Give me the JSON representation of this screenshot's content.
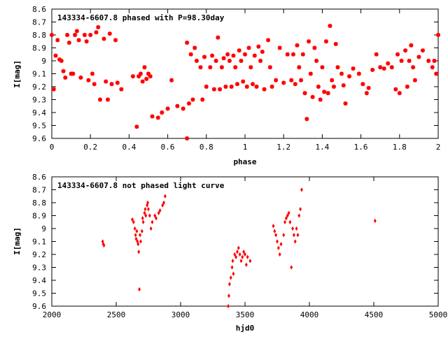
{
  "chart_data": [
    {
      "type": "scatter",
      "title": "143334-6607.8 phased with P=98.30day",
      "xlabel": "phase",
      "ylabel": "I[mag]",
      "xlim": [
        0,
        2
      ],
      "ylim": [
        9.6,
        8.6
      ],
      "y_reversed": true,
      "grid": false,
      "marker_color": "#ff0000",
      "marker": "asterisk",
      "xticks": [
        0,
        0.2,
        0.4,
        0.6,
        0.8,
        1,
        1.2,
        1.4,
        1.6,
        1.8,
        2
      ],
      "xtick_labels": [
        "0",
        "0.2",
        "0.4",
        "0.6",
        "0.8",
        "1",
        "1.2",
        "1.4",
        "1.6",
        "1.8",
        "2"
      ],
      "yticks": [
        8.6,
        8.7,
        8.8,
        8.9,
        9,
        9.1,
        9.2,
        9.3,
        9.4,
        9.5,
        9.6
      ],
      "ytick_labels": [
        "8.6",
        "8.7",
        "8.8",
        "8.9",
        "9",
        "9.1",
        "9.2",
        "9.3",
        "9.4",
        "9.5",
        "9.6"
      ],
      "series": [
        {
          "points": [
            [
              0.0,
              8.8
            ],
            [
              0.01,
              9.22
            ],
            [
              0.02,
              8.96
            ],
            [
              0.03,
              8.84
            ],
            [
              0.04,
              8.99
            ],
            [
              0.05,
              9.0
            ],
            [
              0.06,
              9.08
            ],
            [
              0.07,
              9.13
            ],
            [
              0.08,
              8.8
            ],
            [
              0.09,
              8.86
            ],
            [
              0.1,
              9.1
            ],
            [
              0.11,
              9.1
            ],
            [
              0.12,
              8.8
            ],
            [
              0.13,
              8.77
            ],
            [
              0.14,
              8.84
            ],
            [
              0.15,
              9.13
            ],
            [
              0.17,
              8.8
            ],
            [
              0.18,
              8.85
            ],
            [
              0.19,
              9.15
            ],
            [
              0.2,
              8.8
            ],
            [
              0.21,
              9.1
            ],
            [
              0.22,
              9.18
            ],
            [
              0.23,
              8.78
            ],
            [
              0.24,
              8.74
            ],
            [
              0.25,
              9.3
            ],
            [
              0.27,
              8.83
            ],
            [
              0.28,
              9.16
            ],
            [
              0.29,
              9.3
            ],
            [
              0.3,
              8.79
            ],
            [
              0.31,
              9.18
            ],
            [
              0.33,
              8.84
            ],
            [
              0.34,
              9.17
            ],
            [
              0.36,
              9.22
            ],
            [
              0.42,
              9.12
            ],
            [
              0.44,
              9.51
            ],
            [
              0.45,
              9.12
            ],
            [
              0.46,
              9.1
            ],
            [
              0.47,
              9.16
            ],
            [
              0.48,
              9.05
            ],
            [
              0.49,
              9.14
            ],
            [
              0.5,
              9.1
            ],
            [
              0.51,
              9.12
            ],
            [
              0.52,
              9.43
            ],
            [
              0.55,
              9.44
            ],
            [
              0.57,
              9.4
            ],
            [
              0.6,
              9.37
            ],
            [
              0.62,
              9.15
            ],
            [
              0.65,
              9.35
            ],
            [
              0.68,
              9.37
            ],
            [
              0.7,
              9.6
            ],
            [
              0.7,
              8.86
            ],
            [
              0.71,
              9.33
            ],
            [
              0.72,
              8.95
            ],
            [
              0.73,
              9.3
            ],
            [
              0.74,
              8.9
            ],
            [
              0.75,
              9.0
            ],
            [
              0.77,
              9.05
            ],
            [
              0.78,
              9.3
            ],
            [
              0.79,
              8.97
            ],
            [
              0.8,
              9.2
            ],
            [
              0.82,
              9.05
            ],
            [
              0.83,
              8.96
            ],
            [
              0.84,
              9.22
            ],
            [
              0.85,
              9.0
            ],
            [
              0.86,
              8.82
            ],
            [
              0.87,
              9.22
            ],
            [
              0.88,
              9.05
            ],
            [
              0.89,
              8.98
            ],
            [
              0.9,
              9.2
            ],
            [
              0.91,
              8.95
            ],
            [
              0.92,
              9.0
            ],
            [
              0.93,
              9.2
            ],
            [
              0.94,
              8.96
            ],
            [
              0.95,
              9.05
            ],
            [
              0.96,
              9.18
            ],
            [
              0.97,
              8.92
            ],
            [
              0.98,
              9.0
            ],
            [
              0.99,
              9.16
            ],
            [
              1.0,
              8.95
            ],
            [
              1.01,
              9.2
            ],
            [
              1.02,
              8.9
            ],
            [
              1.03,
              9.05
            ],
            [
              1.04,
              9.18
            ],
            [
              1.05,
              8.96
            ],
            [
              1.06,
              9.2
            ],
            [
              1.07,
              8.89
            ],
            [
              1.08,
              9.0
            ],
            [
              1.09,
              8.93
            ],
            [
              1.1,
              9.22
            ],
            [
              1.12,
              8.84
            ],
            [
              1.13,
              9.05
            ],
            [
              1.14,
              9.2
            ],
            [
              1.16,
              9.15
            ],
            [
              1.18,
              8.9
            ],
            [
              1.2,
              9.17
            ],
            [
              1.22,
              8.95
            ],
            [
              1.24,
              9.15
            ],
            [
              1.25,
              8.95
            ],
            [
              1.26,
              9.18
            ],
            [
              1.27,
              8.88
            ],
            [
              1.28,
              9.05
            ],
            [
              1.29,
              9.15
            ],
            [
              1.3,
              8.95
            ],
            [
              1.31,
              9.25
            ],
            [
              1.32,
              9.45
            ],
            [
              1.33,
              8.85
            ],
            [
              1.34,
              9.1
            ],
            [
              1.35,
              9.28
            ],
            [
              1.36,
              8.9
            ],
            [
              1.37,
              9.0
            ],
            [
              1.38,
              9.2
            ],
            [
              1.39,
              9.3
            ],
            [
              1.4,
              9.05
            ],
            [
              1.41,
              9.24
            ],
            [
              1.42,
              8.85
            ],
            [
              1.43,
              9.25
            ],
            [
              1.44,
              8.73
            ],
            [
              1.45,
              9.15
            ],
            [
              1.46,
              9.2
            ],
            [
              1.47,
              8.87
            ],
            [
              1.48,
              9.05
            ],
            [
              1.5,
              9.1
            ],
            [
              1.51,
              9.19
            ],
            [
              1.52,
              9.33
            ],
            [
              1.54,
              9.12
            ],
            [
              1.56,
              9.06
            ],
            [
              1.59,
              9.1
            ],
            [
              1.61,
              9.18
            ],
            [
              1.63,
              9.25
            ],
            [
              1.64,
              9.21
            ],
            [
              1.66,
              9.07
            ],
            [
              1.68,
              8.95
            ],
            [
              1.7,
              9.05
            ],
            [
              1.72,
              9.06
            ],
            [
              1.74,
              9.02
            ],
            [
              1.76,
              9.05
            ],
            [
              1.78,
              9.22
            ],
            [
              1.79,
              8.95
            ],
            [
              1.8,
              9.25
            ],
            [
              1.81,
              9.0
            ],
            [
              1.83,
              8.92
            ],
            [
              1.84,
              9.2
            ],
            [
              1.85,
              9.0
            ],
            [
              1.86,
              8.88
            ],
            [
              1.87,
              9.05
            ],
            [
              1.88,
              9.15
            ],
            [
              1.9,
              8.97
            ],
            [
              1.92,
              8.92
            ],
            [
              1.95,
              9.0
            ],
            [
              1.97,
              9.05
            ],
            [
              1.98,
              9.0
            ],
            [
              1.99,
              9.1
            ],
            [
              2.0,
              8.8
            ]
          ]
        }
      ]
    },
    {
      "type": "scatter",
      "title": "143334-6607.8 not phased light curve",
      "xlabel": "hjd0",
      "ylabel": "I[mag]",
      "xlim": [
        2000,
        5000
      ],
      "ylim": [
        9.6,
        8.6
      ],
      "y_reversed": true,
      "grid": false,
      "marker_color": "#ff0000",
      "marker": "diamond",
      "xticks": [
        2000,
        2500,
        3000,
        3500,
        4000,
        4500,
        5000
      ],
      "xtick_labels": [
        "2000",
        "2500",
        "3000",
        "3500",
        "4000",
        "4500",
        "5000"
      ],
      "yticks": [
        8.6,
        8.7,
        8.8,
        8.9,
        9,
        9.1,
        9.2,
        9.3,
        9.4,
        9.5,
        9.6
      ],
      "ytick_labels": [
        "8.6",
        "8.7",
        "8.8",
        "8.9",
        "9",
        "9.1",
        "9.2",
        "9.3",
        "9.4",
        "9.5",
        "9.6"
      ],
      "series": [
        {
          "points": [
            [
              2395,
              9.1
            ],
            [
              2400,
              9.12
            ],
            [
              2405,
              9.13
            ],
            [
              2625,
              8.93
            ],
            [
              2635,
              8.95
            ],
            [
              2645,
              9.0
            ],
            [
              2650,
              9.05
            ],
            [
              2655,
              9.08
            ],
            [
              2660,
              9.02
            ],
            [
              2665,
              9.1
            ],
            [
              2670,
              9.12
            ],
            [
              2675,
              9.18
            ],
            [
              2680,
              9.47
            ],
            [
              2685,
              9.05
            ],
            [
              2690,
              9.1
            ],
            [
              2700,
              9.02
            ],
            [
              2705,
              8.92
            ],
            [
              2710,
              8.95
            ],
            [
              2720,
              8.88
            ],
            [
              2725,
              8.85
            ],
            [
              2730,
              8.9
            ],
            [
              2740,
              8.82
            ],
            [
              2745,
              8.8
            ],
            [
              2750,
              8.85
            ],
            [
              2760,
              8.9
            ],
            [
              2770,
              9.0
            ],
            [
              2780,
              8.95
            ],
            [
              2800,
              8.9
            ],
            [
              2810,
              8.92
            ],
            [
              2830,
              8.88
            ],
            [
              2840,
              8.86
            ],
            [
              2860,
              8.82
            ],
            [
              2870,
              8.8
            ],
            [
              2880,
              8.75
            ],
            [
              3370,
              9.6
            ],
            [
              3375,
              9.52
            ],
            [
              3380,
              9.43
            ],
            [
              3390,
              9.38
            ],
            [
              3400,
              9.3
            ],
            [
              3405,
              9.25
            ],
            [
              3410,
              9.35
            ],
            [
              3420,
              9.2
            ],
            [
              3430,
              9.22
            ],
            [
              3440,
              9.18
            ],
            [
              3450,
              9.15
            ],
            [
              3460,
              9.2
            ],
            [
              3470,
              9.25
            ],
            [
              3480,
              9.22
            ],
            [
              3490,
              9.18
            ],
            [
              3500,
              9.2
            ],
            [
              3510,
              9.28
            ],
            [
              3520,
              9.22
            ],
            [
              3540,
              9.25
            ],
            [
              3720,
              8.98
            ],
            [
              3730,
              9.02
            ],
            [
              3740,
              9.05
            ],
            [
              3750,
              9.1
            ],
            [
              3760,
              9.15
            ],
            [
              3770,
              9.2
            ],
            [
              3780,
              9.12
            ],
            [
              3800,
              9.05
            ],
            [
              3810,
              8.95
            ],
            [
              3820,
              8.92
            ],
            [
              3830,
              8.9
            ],
            [
              3840,
              8.88
            ],
            [
              3850,
              8.95
            ],
            [
              3860,
              9.3
            ],
            [
              3870,
              9.0
            ],
            [
              3880,
              9.05
            ],
            [
              3890,
              9.1
            ],
            [
              3900,
              9.0
            ],
            [
              3910,
              9.05
            ],
            [
              3920,
              8.9
            ],
            [
              3930,
              8.85
            ],
            [
              3940,
              8.7
            ],
            [
              4510,
              8.94
            ]
          ]
        }
      ]
    }
  ]
}
